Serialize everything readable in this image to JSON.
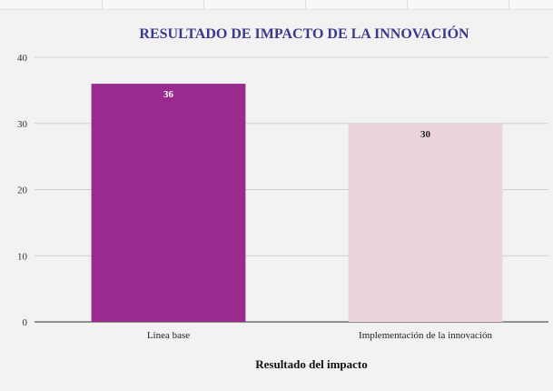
{
  "chart_data": {
    "type": "bar",
    "title": "RESULTADO DE IMPACTO DE LA INNOVACIÓN",
    "xlabel": "Resultado del impacto",
    "ylabel": "",
    "categories": [
      "Línea base",
      "Implementación de la innovación"
    ],
    "values": [
      36,
      30
    ],
    "data_labels": [
      "36",
      "30"
    ],
    "ylim": [
      0,
      40
    ],
    "yticks": [
      0,
      10,
      20,
      30,
      40
    ],
    "grid": true,
    "legend": "none",
    "colors": {
      "bars": [
        "#9b2a8e",
        "#ecd3de"
      ],
      "data_label_text": [
        "#ffffff",
        "#222222"
      ],
      "title": "#3a3a8c",
      "gridline": "#d0d0d0",
      "axis": "#555555"
    }
  }
}
